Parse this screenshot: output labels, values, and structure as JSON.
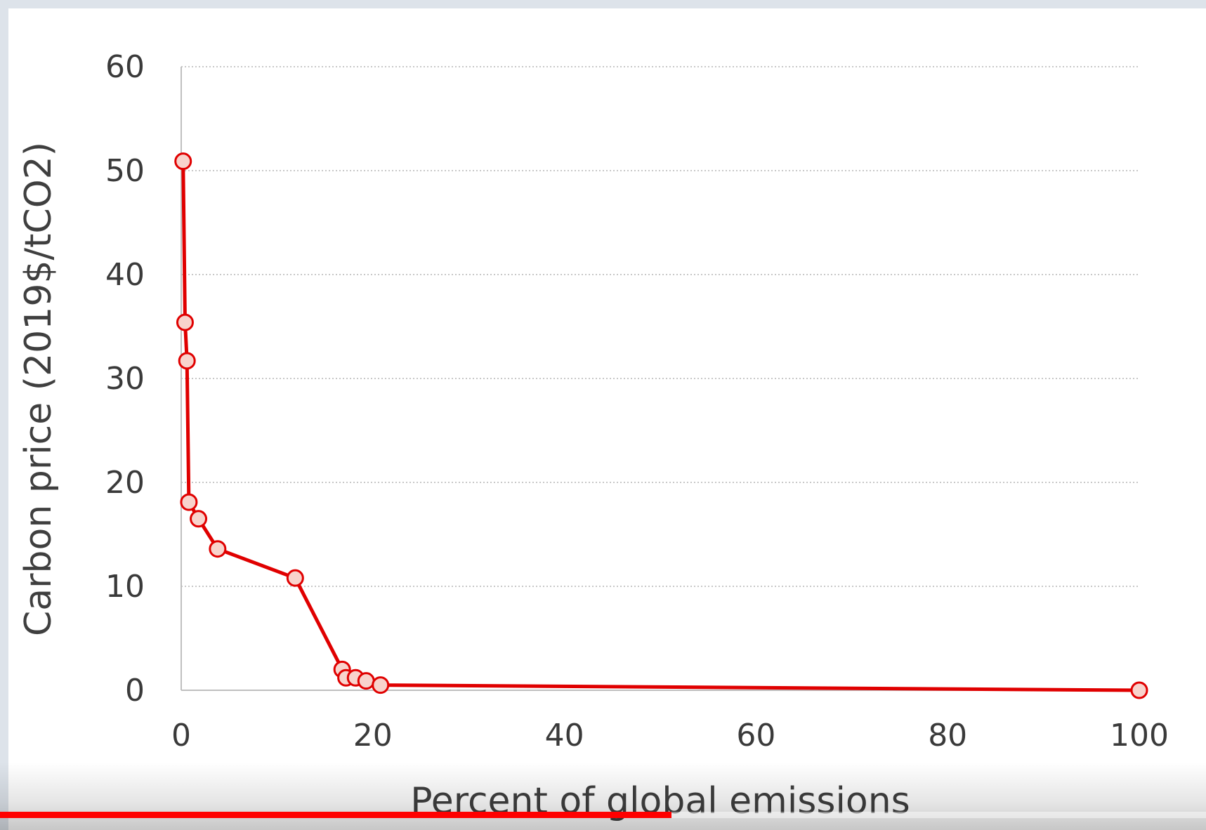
{
  "chart_data": {
    "type": "line",
    "xlabel": "Percent of global emissions",
    "ylabel": "Carbon price (2019$/tCO2)",
    "xlim": [
      0,
      100
    ],
    "ylim": [
      0,
      60
    ],
    "x_ticks": [
      "0",
      "20",
      "40",
      "60",
      "80",
      "100"
    ],
    "y_ticks": [
      "0",
      "10",
      "20",
      "30",
      "40",
      "50",
      "60"
    ],
    "grid": "horizontal dotted",
    "series_color": "#e00000",
    "marker_fill": "#f8d3cc",
    "points": [
      {
        "x": 0.2,
        "y": 50.9
      },
      {
        "x": 0.4,
        "y": 35.4
      },
      {
        "x": 0.6,
        "y": 31.7
      },
      {
        "x": 0.8,
        "y": 18.1
      },
      {
        "x": 1.8,
        "y": 16.5
      },
      {
        "x": 3.8,
        "y": 13.6
      },
      {
        "x": 11.9,
        "y": 10.8
      },
      {
        "x": 16.8,
        "y": 2.0
      },
      {
        "x": 17.2,
        "y": 1.2
      },
      {
        "x": 18.2,
        "y": 1.2
      },
      {
        "x": 19.3,
        "y": 0.9
      },
      {
        "x": 20.8,
        "y": 0.5
      },
      {
        "x": 100,
        "y": 0.0
      }
    ]
  },
  "player": {
    "progress_fraction": 0.557,
    "progress_color": "#ff0000"
  }
}
